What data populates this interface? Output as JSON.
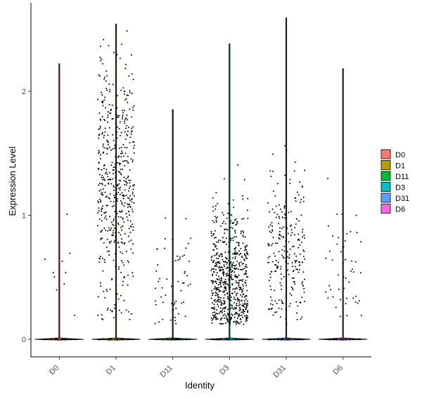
{
  "chart_data": {
    "type": "violin",
    "xlabel": "Identity",
    "ylabel": "Expression Level",
    "categories": [
      "D0",
      "D1",
      "D11",
      "D3",
      "D31",
      "D6"
    ],
    "yticks": [
      0,
      1,
      2
    ],
    "ylim": [
      -0.15,
      2.72
    ],
    "grid": false,
    "legend_position": "right",
    "series": [
      {
        "name": "D0",
        "color": "#F8766D",
        "max": 2.22,
        "zero_fraction": 0.97,
        "nonzero_center": 0.55,
        "nonzero_spread": 0.6,
        "n_points": 10
      },
      {
        "name": "D1",
        "color": "#B79F00",
        "max": 2.54,
        "zero_fraction": 0.6,
        "nonzero_center": 1.25,
        "nonzero_spread": 0.9,
        "n_points": 520
      },
      {
        "name": "D11",
        "color": "#00BA38",
        "max": 1.85,
        "zero_fraction": 0.96,
        "nonzero_center": 0.45,
        "nonzero_spread": 0.5,
        "n_points": 60
      },
      {
        "name": "D3",
        "color": "#00BFC4",
        "max": 2.38,
        "zero_fraction": 0.75,
        "nonzero_center": 0.45,
        "nonzero_spread": 0.55,
        "n_points": 640
      },
      {
        "name": "D31",
        "color": "#619CFF",
        "max": 2.59,
        "zero_fraction": 0.85,
        "nonzero_center": 0.7,
        "nonzero_spread": 0.6,
        "n_points": 240
      },
      {
        "name": "D6",
        "color": "#F564E3",
        "max": 2.18,
        "zero_fraction": 0.95,
        "nonzero_center": 0.55,
        "nonzero_spread": 0.5,
        "n_points": 50
      }
    ]
  }
}
